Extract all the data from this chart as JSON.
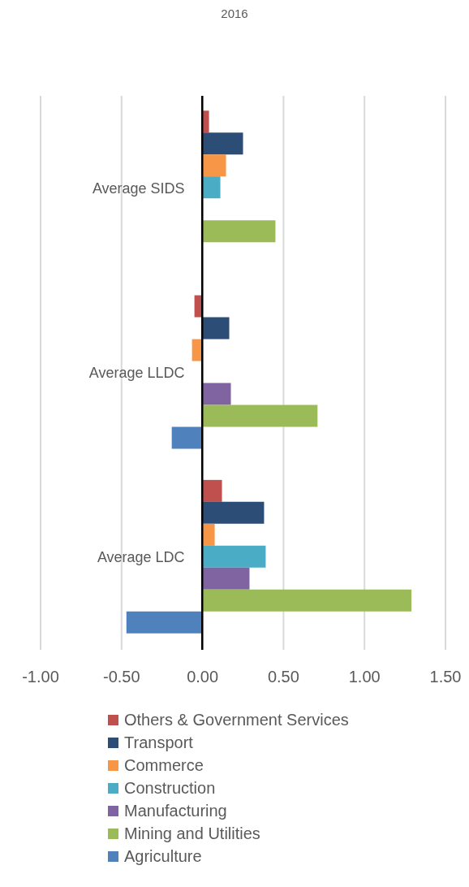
{
  "chart_data": {
    "type": "bar",
    "orientation": "horizontal",
    "title": "2016",
    "categories": [
      "Average SIDS",
      "Average LLDC",
      "Average LDC"
    ],
    "series": [
      {
        "name": "Others & Government Services",
        "color": "#c0504d",
        "values": [
          0.04,
          -0.05,
          0.12
        ]
      },
      {
        "name": "Transport",
        "color": "#2c4d75",
        "values": [
          0.25,
          0.165,
          0.38
        ]
      },
      {
        "name": "Commerce",
        "color": "#f79646",
        "values": [
          0.145,
          -0.065,
          0.075
        ]
      },
      {
        "name": "Construction",
        "color": "#4bacc6",
        "values": [
          0.11,
          0,
          0.39
        ]
      },
      {
        "name": "Manufacturing",
        "color": "#8064a2",
        "values": [
          0,
          0.175,
          0.29
        ]
      },
      {
        "name": "Mining and Utilities",
        "color": "#9bbb59",
        "values": [
          0.45,
          0.71,
          1.29
        ]
      },
      {
        "name": "Agriculture",
        "color": "#4f81bd",
        "values": [
          null,
          -0.19,
          -0.47
        ]
      }
    ],
    "xlim": [
      -1,
      1.5
    ],
    "xticks": [
      {
        "value": -1,
        "label": "-1.00"
      },
      {
        "value": -0.5,
        "label": "-0.50"
      },
      {
        "value": 0,
        "label": "0.00"
      },
      {
        "value": 0.5,
        "label": "0.50"
      },
      {
        "value": 1,
        "label": "1.00"
      },
      {
        "value": 1.5,
        "label": "1.50"
      }
    ],
    "grid": "x",
    "legend": "bottom"
  }
}
